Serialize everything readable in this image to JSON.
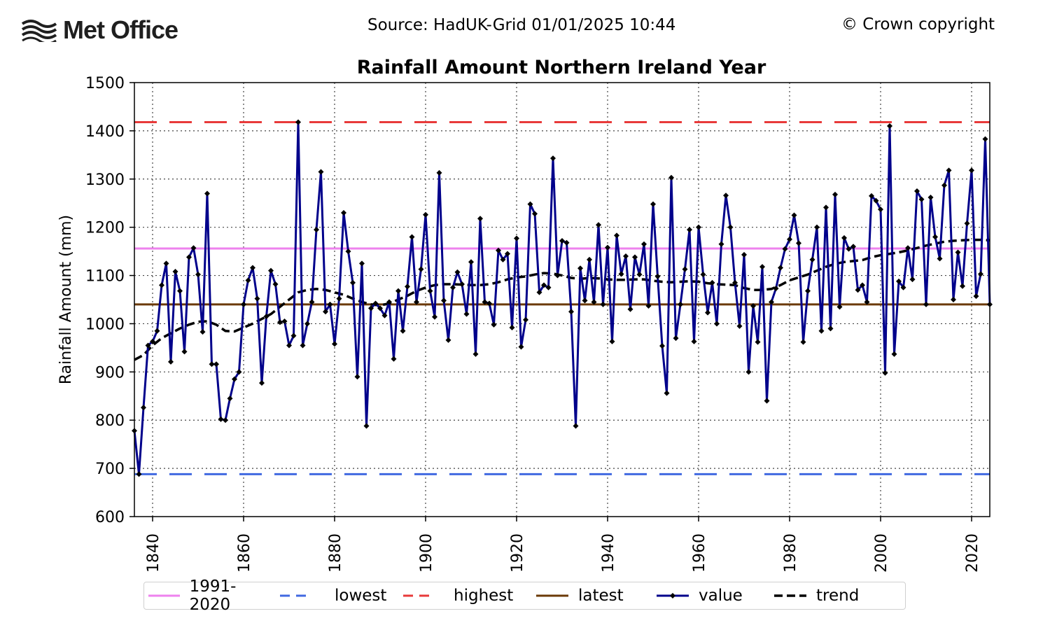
{
  "header": {
    "logo_text": "Met Office",
    "source": "Source: HadUK-Grid 01/01/2025 10:44",
    "copyright": "© Crown copyright"
  },
  "colors": {
    "value": "#00008b",
    "trend": "#000000",
    "normal": "#ee82ee",
    "lowest": "#4169e1",
    "highest": "#e83a3a",
    "latest": "#6b3a07"
  },
  "chart_data": {
    "type": "line",
    "title": "Rainfall Amount Northern Ireland Year",
    "ylabel": "Rainfall Amount (mm)",
    "xlabel": "",
    "xlim": [
      1836,
      2024
    ],
    "ylim": [
      600,
      1500
    ],
    "yticks": [
      600,
      700,
      800,
      900,
      1000,
      1100,
      1200,
      1300,
      1400,
      1500
    ],
    "xticks": [
      1840,
      1860,
      1880,
      1900,
      1920,
      1940,
      1960,
      1980,
      2000,
      2020
    ],
    "grid": true,
    "legend_placement": "bottom-center",
    "reference_lines": {
      "normal_1991_2020": 1156,
      "lowest": 688,
      "highest": 1418,
      "latest": 1040
    },
    "legend": [
      "1991-2020",
      "lowest",
      "highest",
      "latest",
      "value",
      "trend"
    ],
    "series": [
      {
        "name": "value",
        "x": [
          1836,
          1837,
          1838,
          1839,
          1840,
          1841,
          1842,
          1843,
          1844,
          1845,
          1846,
          1847,
          1848,
          1849,
          1850,
          1851,
          1852,
          1853,
          1854,
          1855,
          1856,
          1857,
          1858,
          1859,
          1860,
          1861,
          1862,
          1863,
          1864,
          1865,
          1866,
          1867,
          1868,
          1869,
          1870,
          1871,
          1872,
          1873,
          1874,
          1875,
          1876,
          1877,
          1878,
          1879,
          1880,
          1881,
          1882,
          1883,
          1884,
          1885,
          1886,
          1887,
          1888,
          1889,
          1890,
          1891,
          1892,
          1893,
          1894,
          1895,
          1896,
          1897,
          1898,
          1899,
          1900,
          1901,
          1902,
          1903,
          1904,
          1905,
          1906,
          1907,
          1908,
          1909,
          1910,
          1911,
          1912,
          1913,
          1914,
          1915,
          1916,
          1917,
          1918,
          1919,
          1920,
          1921,
          1922,
          1923,
          1924,
          1925,
          1926,
          1927,
          1928,
          1929,
          1930,
          1931,
          1932,
          1933,
          1934,
          1935,
          1936,
          1937,
          1938,
          1939,
          1940,
          1941,
          1942,
          1943,
          1944,
          1945,
          1946,
          1947,
          1948,
          1949,
          1950,
          1951,
          1952,
          1953,
          1954,
          1955,
          1956,
          1957,
          1958,
          1959,
          1960,
          1961,
          1962,
          1963,
          1964,
          1965,
          1966,
          1967,
          1968,
          1969,
          1970,
          1971,
          1972,
          1973,
          1974,
          1975,
          1976,
          1977,
          1978,
          1979,
          1980,
          1981,
          1982,
          1983,
          1984,
          1985,
          1986,
          1987,
          1988,
          1989,
          1990,
          1991,
          1992,
          1993,
          1994,
          1995,
          1996,
          1997,
          1998,
          1999,
          2000,
          2001,
          2002,
          2003,
          2004,
          2005,
          2006,
          2007,
          2008,
          2009,
          2010,
          2011,
          2012,
          2013,
          2014,
          2015,
          2016,
          2017,
          2018,
          2019,
          2020,
          2021,
          2022,
          2023,
          2024
        ],
        "values": [
          778,
          688,
          826,
          955,
          963,
          985,
          1080,
          1125,
          921,
          1108,
          1068,
          942,
          1138,
          1157,
          1102,
          983,
          1270,
          916,
          916,
          802,
          800,
          845,
          885,
          900,
          1040,
          1090,
          1116,
          1052,
          877,
          1015,
          1110,
          1082,
          1003,
          1005,
          955,
          975,
          1418,
          955,
          1000,
          1045,
          1195,
          1315,
          1025,
          1040,
          958,
          1052,
          1230,
          1150,
          1085,
          890,
          1125,
          788,
          1032,
          1042,
          1032,
          1017,
          1045,
          927,
          1068,
          985,
          1077,
          1180,
          1045,
          1113,
          1226,
          1068,
          1014,
          1313,
          1048,
          966,
          1075,
          1107,
          1082,
          1020,
          1128,
          937,
          1218,
          1045,
          1042,
          998,
          1152,
          1133,
          1145,
          992,
          1177,
          952,
          1008,
          1248,
          1228,
          1065,
          1080,
          1075,
          1343,
          1100,
          1172,
          1168,
          1025,
          788,
          1115,
          1048,
          1133,
          1045,
          1205,
          1040,
          1158,
          963,
          1183,
          1103,
          1140,
          1030,
          1138,
          1102,
          1165,
          1037,
          1248,
          1098,
          954,
          856,
          1303,
          970,
          1040,
          1113,
          1195,
          963,
          1200,
          1102,
          1023,
          1085,
          1000,
          1165,
          1266,
          1200,
          1085,
          995,
          1143,
          900,
          1037,
          962,
          1118,
          840,
          1045,
          1073,
          1116,
          1155,
          1175,
          1225,
          1167,
          962,
          1068,
          1133,
          1200,
          985,
          1241,
          990,
          1268,
          1035,
          1178,
          1155,
          1160,
          1070,
          1080,
          1045,
          1265,
          1255,
          1237,
          898,
          1410,
          937,
          1088,
          1075,
          1157,
          1092,
          1275,
          1258,
          1040,
          1262,
          1180,
          1135,
          1287,
          1318,
          1050,
          1148,
          1078,
          1208,
          1318,
          1057,
          1103,
          1383,
          1040
        ]
      },
      {
        "name": "trend",
        "x": [
          1836,
          1838,
          1840,
          1842,
          1844,
          1846,
          1848,
          1850,
          1852,
          1854,
          1856,
          1858,
          1860,
          1862,
          1864,
          1866,
          1868,
          1870,
          1872,
          1874,
          1876,
          1878,
          1880,
          1882,
          1884,
          1886,
          1888,
          1890,
          1892,
          1894,
          1896,
          1898,
          1900,
          1902,
          1904,
          1906,
          1908,
          1910,
          1912,
          1914,
          1916,
          1918,
          1920,
          1922,
          1924,
          1926,
          1928,
          1930,
          1932,
          1934,
          1936,
          1938,
          1940,
          1942,
          1944,
          1946,
          1948,
          1950,
          1952,
          1954,
          1956,
          1958,
          1960,
          1962,
          1964,
          1966,
          1968,
          1970,
          1972,
          1974,
          1976,
          1978,
          1980,
          1982,
          1984,
          1986,
          1988,
          1990,
          1992,
          1994,
          1996,
          1998,
          2000,
          2002,
          2004,
          2006,
          2008,
          2010,
          2012,
          2014,
          2016,
          2018,
          2020,
          2022,
          2024
        ],
        "values": [
          925,
          935,
          955,
          970,
          980,
          990,
          998,
          1004,
          1005,
          998,
          985,
          984,
          992,
          1000,
          1010,
          1020,
          1035,
          1050,
          1065,
          1070,
          1072,
          1070,
          1065,
          1060,
          1052,
          1045,
          1040,
          1038,
          1042,
          1050,
          1058,
          1068,
          1075,
          1080,
          1082,
          1082,
          1081,
          1080,
          1080,
          1082,
          1086,
          1092,
          1096,
          1098,
          1102,
          1105,
          1104,
          1100,
          1095,
          1093,
          1095,
          1094,
          1092,
          1091,
          1091,
          1092,
          1092,
          1089,
          1087,
          1086,
          1087,
          1088,
          1087,
          1084,
          1082,
          1081,
          1080,
          1074,
          1070,
          1070,
          1072,
          1080,
          1090,
          1096,
          1102,
          1110,
          1118,
          1124,
          1128,
          1130,
          1132,
          1138,
          1142,
          1145,
          1148,
          1152,
          1157,
          1162,
          1166,
          1170,
          1172,
          1173,
          1174,
          1174,
          1173
        ]
      }
    ]
  },
  "legend_items": [
    {
      "label": "1991-2020"
    },
    {
      "label": "lowest"
    },
    {
      "label": "highest"
    },
    {
      "label": "latest"
    },
    {
      "label": "value"
    },
    {
      "label": "trend"
    }
  ]
}
